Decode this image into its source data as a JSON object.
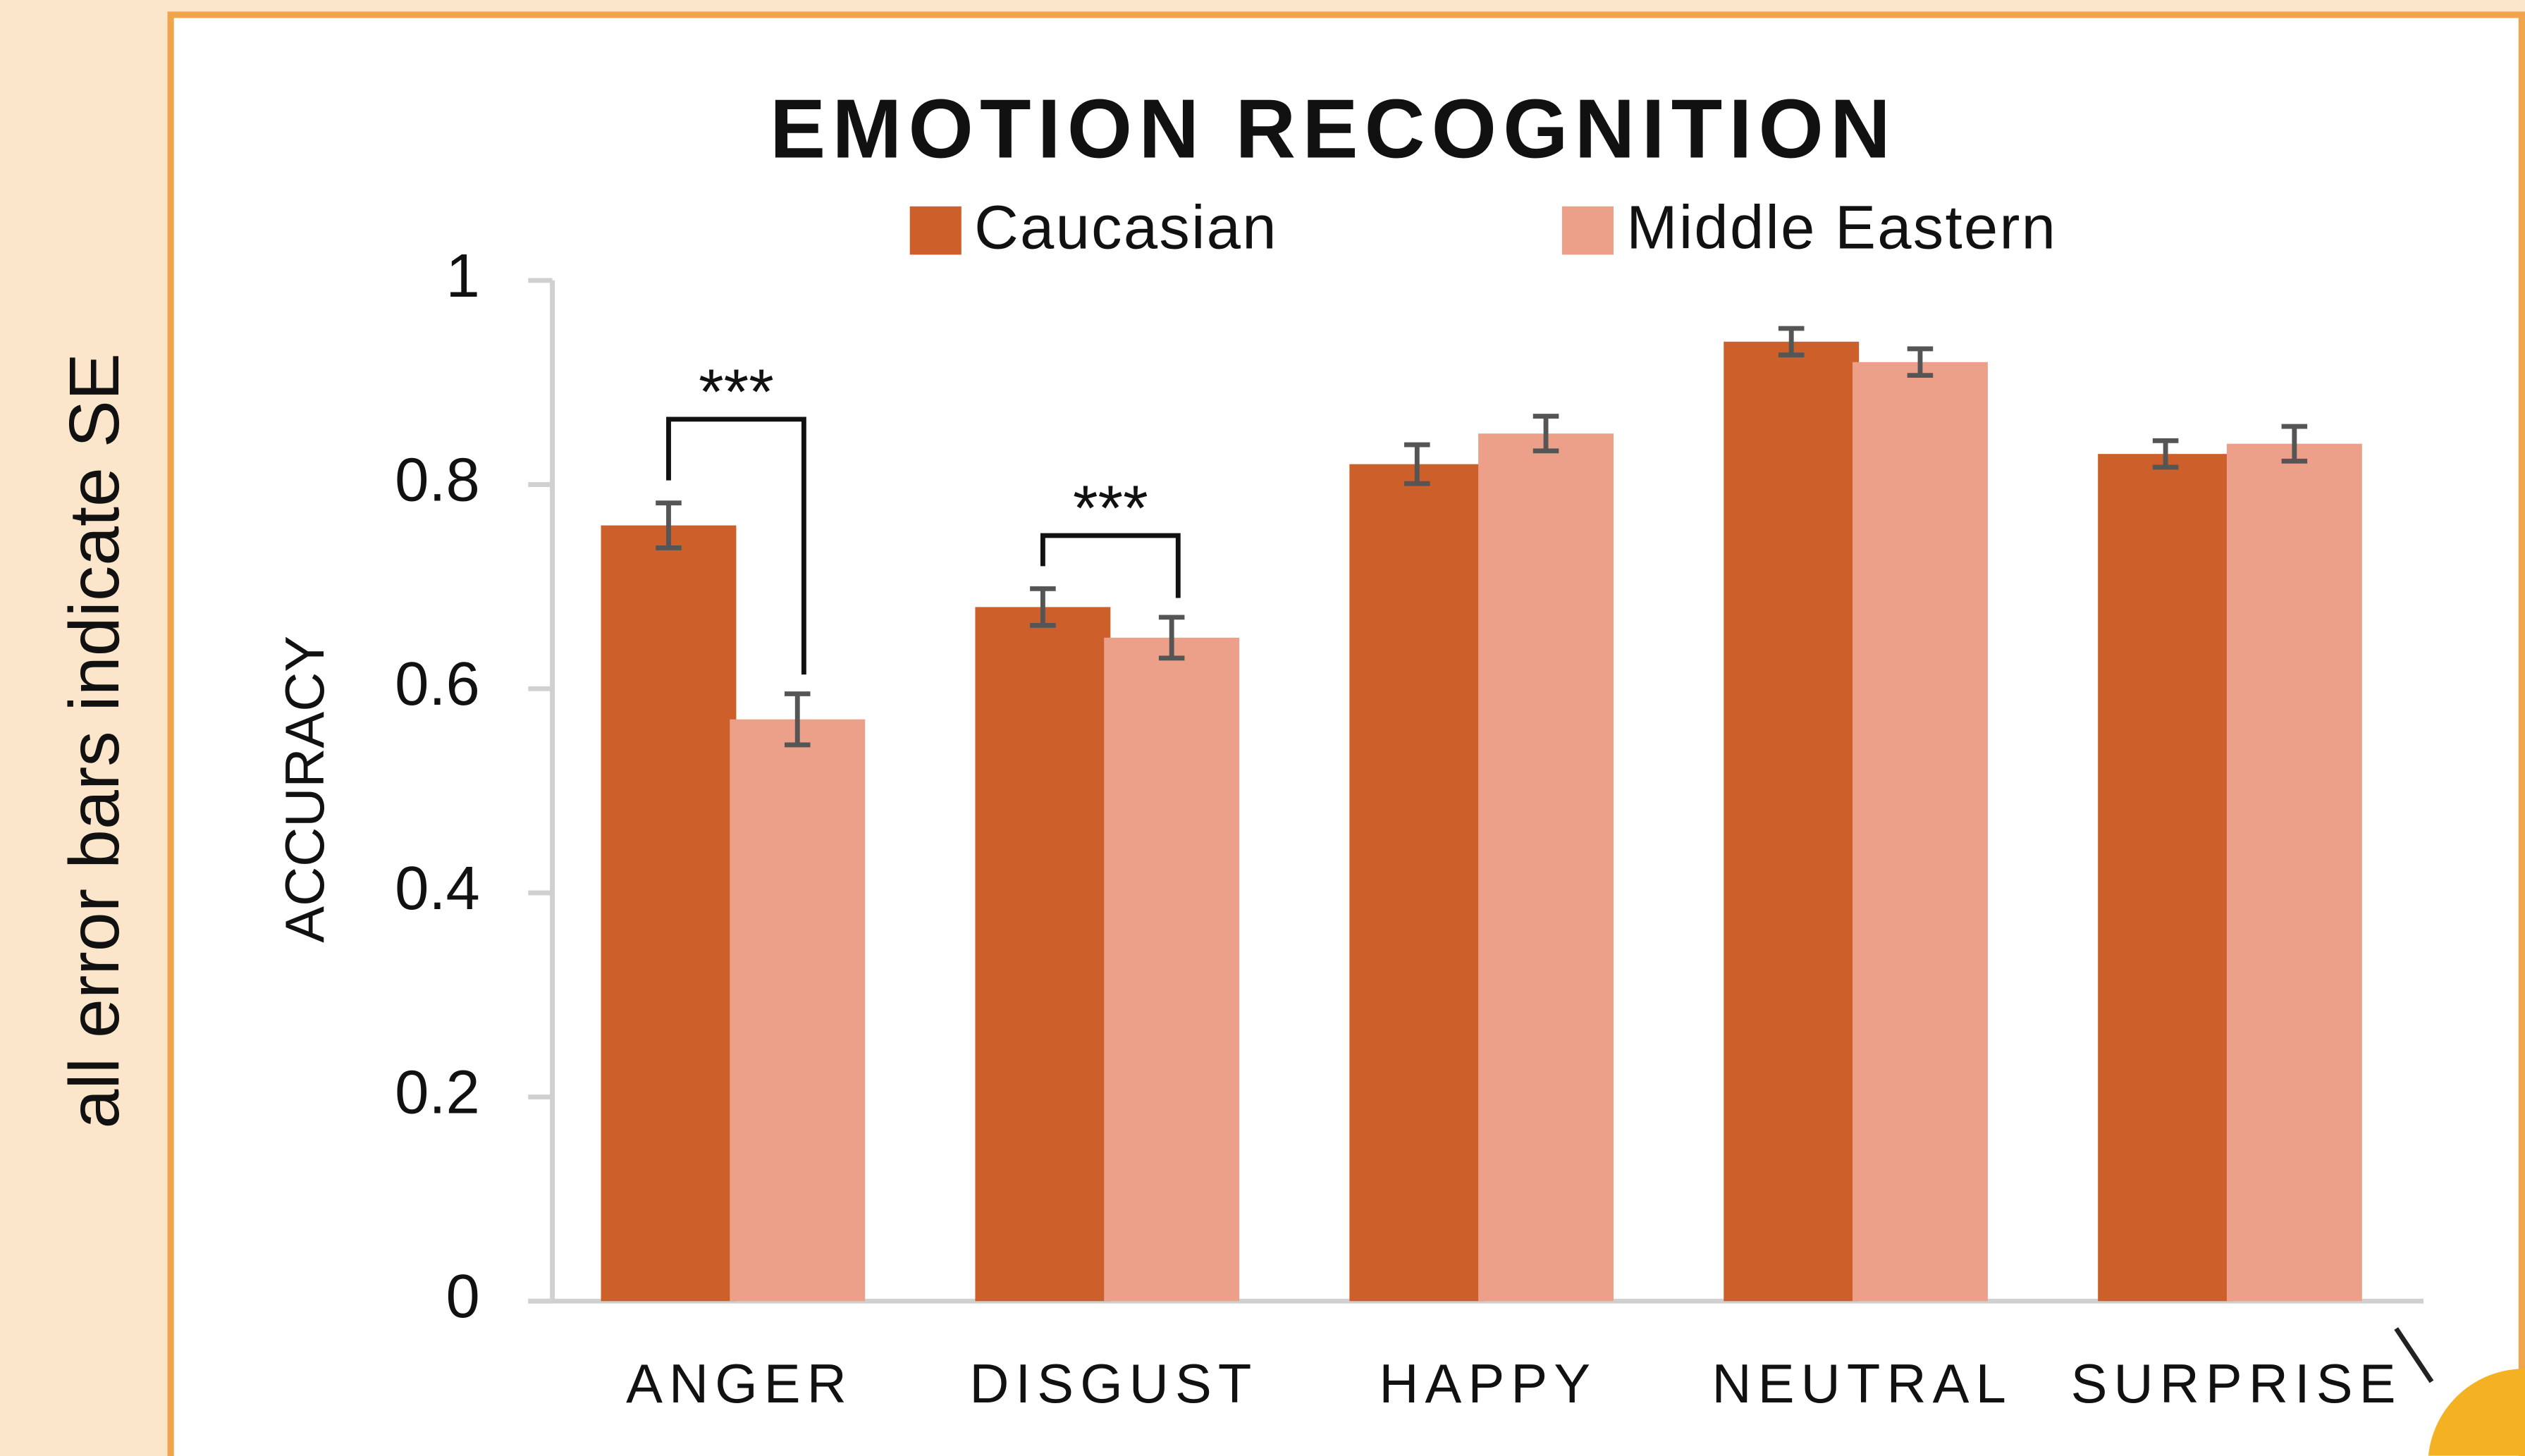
{
  "side_note": "all error bars indicate SE",
  "chart_data": {
    "type": "bar",
    "title": "EMOTION RECOGNITION",
    "y_label": "ACCURACY",
    "categories": [
      "ANGER",
      "DISGUST",
      "HAPPY",
      "NEUTRAL",
      "SURPRISE"
    ],
    "series": [
      {
        "name": "Caucasian",
        "color": "#cc5f2a",
        "values": [
          0.76,
          0.68,
          0.82,
          0.94,
          0.83
        ],
        "errors": [
          0.022,
          0.018,
          0.019,
          0.013,
          0.013
        ]
      },
      {
        "name": "Middle Eastern",
        "color": "#eda089",
        "values": [
          0.57,
          0.65,
          0.85,
          0.92,
          0.84
        ],
        "errors": [
          0.025,
          0.02,
          0.017,
          0.013,
          0.017
        ]
      }
    ],
    "significance": [
      {
        "label": "***",
        "category": "ANGER"
      },
      {
        "label": "***",
        "category": "DISGUST"
      }
    ],
    "ylim": [
      0,
      1
    ],
    "yticks": [
      0,
      0.2,
      0.4,
      0.6,
      0.8,
      1
    ],
    "grid": false
  }
}
